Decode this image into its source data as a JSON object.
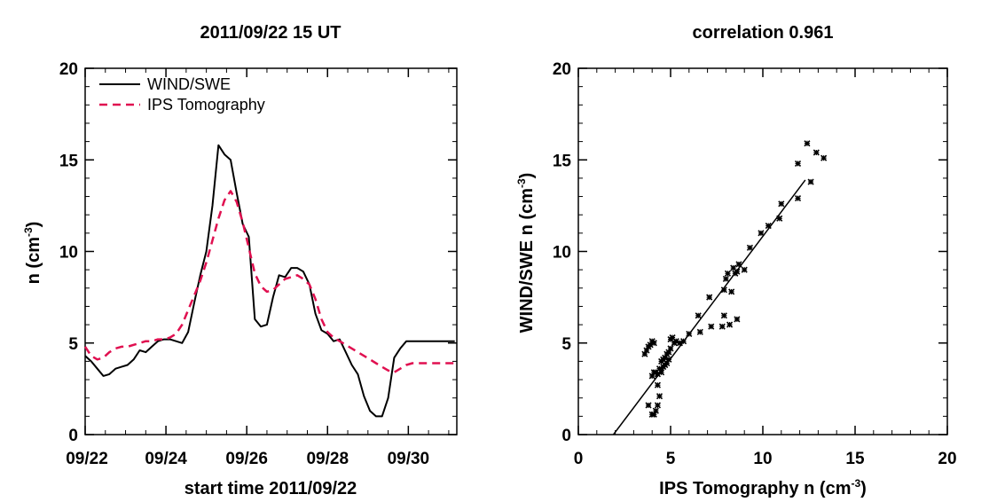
{
  "chart_data": [
    {
      "type": "line",
      "title": "2011/09/22 15 UT",
      "xlabel": "start time 2011/09/22",
      "ylabel": "n (cm",
      "ylabel_sup": "-3",
      "ylabel_close": ")",
      "x_tick_labels": [
        "09/22",
        "09/24",
        "09/26",
        "09/28",
        "09/30"
      ],
      "x_tick_days": [
        0,
        2,
        4,
        6,
        8
      ],
      "xlim_days": [
        0,
        9.2
      ],
      "ylim": [
        0,
        20
      ],
      "y_ticks": [
        0,
        5,
        10,
        15,
        20
      ],
      "legend_position": "top-left",
      "series": [
        {
          "name": "WIND/SWE",
          "color": "#000000",
          "style": "solid",
          "x": [
            0.0,
            0.15,
            0.3,
            0.45,
            0.6,
            0.75,
            0.9,
            1.05,
            1.2,
            1.35,
            1.5,
            1.65,
            1.8,
            1.95,
            2.1,
            2.25,
            2.4,
            2.55,
            2.7,
            2.85,
            3.0,
            3.15,
            3.3,
            3.45,
            3.6,
            3.75,
            3.9,
            4.05,
            4.2,
            4.35,
            4.5,
            4.65,
            4.8,
            4.95,
            5.1,
            5.25,
            5.4,
            5.55,
            5.7,
            5.85,
            6.0,
            6.15,
            6.3,
            6.45,
            6.6,
            6.75,
            6.9,
            7.05,
            7.2,
            7.35,
            7.5,
            7.65,
            7.8,
            7.95,
            8.1,
            8.25,
            8.4,
            8.55,
            8.7,
            8.85,
            9.0,
            9.15
          ],
          "y": [
            4.3,
            4.0,
            3.6,
            3.2,
            3.3,
            3.6,
            3.7,
            3.8,
            4.1,
            4.6,
            4.5,
            4.8,
            5.1,
            5.2,
            5.2,
            5.1,
            5.0,
            5.6,
            7.2,
            8.7,
            10.0,
            12.5,
            15.8,
            15.3,
            15.0,
            13.2,
            11.5,
            10.8,
            6.3,
            5.9,
            6.0,
            7.5,
            8.7,
            8.6,
            9.1,
            9.1,
            8.9,
            8.2,
            6.6,
            5.7,
            5.5,
            5.1,
            5.2,
            4.5,
            3.8,
            3.3,
            2.1,
            1.3,
            1.0,
            1.0,
            2.0,
            4.2,
            4.7,
            5.1,
            5.1,
            5.1,
            5.1,
            5.1,
            5.1,
            5.1,
            5.1,
            5.1
          ]
        },
        {
          "name": "IPS Tomography",
          "color": "#e01050",
          "style": "dashed",
          "x": [
            0.0,
            0.15,
            0.3,
            0.45,
            0.6,
            0.75,
            0.9,
            1.05,
            1.2,
            1.35,
            1.5,
            1.65,
            1.8,
            1.95,
            2.1,
            2.25,
            2.4,
            2.55,
            2.7,
            2.85,
            3.0,
            3.15,
            3.3,
            3.45,
            3.6,
            3.75,
            3.9,
            4.05,
            4.2,
            4.35,
            4.5,
            4.65,
            4.8,
            4.95,
            5.1,
            5.25,
            5.4,
            5.55,
            5.7,
            5.85,
            6.0,
            6.15,
            6.3,
            6.45,
            6.6,
            6.75,
            6.9,
            7.05,
            7.2,
            7.35,
            7.5,
            7.65,
            7.8,
            7.95,
            8.1,
            8.25,
            8.4,
            8.55,
            8.7,
            8.85,
            9.0,
            9.15
          ],
          "y": [
            4.8,
            4.3,
            4.1,
            4.2,
            4.5,
            4.7,
            4.8,
            4.8,
            4.9,
            5.0,
            5.1,
            5.1,
            5.2,
            5.2,
            5.3,
            5.5,
            6.0,
            6.8,
            7.6,
            8.4,
            9.4,
            10.6,
            11.8,
            12.8,
            13.3,
            12.7,
            11.6,
            10.2,
            8.8,
            8.1,
            7.8,
            7.9,
            8.2,
            8.5,
            8.6,
            8.7,
            8.5,
            8.2,
            7.4,
            6.3,
            5.6,
            5.3,
            5.1,
            4.9,
            4.7,
            4.5,
            4.3,
            4.1,
            3.9,
            3.7,
            3.5,
            3.4,
            3.6,
            3.8,
            3.9,
            3.9,
            3.9,
            3.9,
            3.9,
            3.9,
            3.9,
            3.9
          ]
        }
      ]
    },
    {
      "type": "scatter",
      "title": "correlation 0.961",
      "xlabel": "IPS Tomography n (cm",
      "xlabel_sup": "-3",
      "xlabel_close": ")",
      "ylabel": "WIND/SWE n (cm",
      "ylabel_sup": "-3",
      "ylabel_close": ")",
      "xlim": [
        0,
        20
      ],
      "ylim": [
        0,
        20
      ],
      "x_ticks": [
        0,
        5,
        10,
        15,
        20
      ],
      "y_ticks": [
        0,
        5,
        10,
        15,
        20
      ],
      "fit_line": {
        "x": [
          1.9,
          12.3
        ],
        "y": [
          0.0,
          13.9
        ]
      },
      "points": [
        [
          3.6,
          4.4
        ],
        [
          3.7,
          4.6
        ],
        [
          3.8,
          4.8
        ],
        [
          3.9,
          4.9
        ],
        [
          4.0,
          5.1
        ],
        [
          4.1,
          5.0
        ],
        [
          3.8,
          1.6
        ],
        [
          4.0,
          1.1
        ],
        [
          4.1,
          1.1
        ],
        [
          4.2,
          1.3
        ],
        [
          4.3,
          1.6
        ],
        [
          4.4,
          2.1
        ],
        [
          4.3,
          2.7
        ],
        [
          4.0,
          3.2
        ],
        [
          4.1,
          3.4
        ],
        [
          4.2,
          3.4
        ],
        [
          4.3,
          3.3
        ],
        [
          4.4,
          3.6
        ],
        [
          4.5,
          3.4
        ],
        [
          4.6,
          3.7
        ],
        [
          4.5,
          4.0
        ],
        [
          4.6,
          4.1
        ],
        [
          4.7,
          4.2
        ],
        [
          4.8,
          4.4
        ],
        [
          4.7,
          3.8
        ],
        [
          4.8,
          3.9
        ],
        [
          4.9,
          4.1
        ],
        [
          4.9,
          4.5
        ],
        [
          5.0,
          4.7
        ],
        [
          5.0,
          5.2
        ],
        [
          5.1,
          5.3
        ],
        [
          5.2,
          5.0
        ],
        [
          5.3,
          5.1
        ],
        [
          5.5,
          5.0
        ],
        [
          5.7,
          5.1
        ],
        [
          6.0,
          5.5
        ],
        [
          6.5,
          6.5
        ],
        [
          6.6,
          5.6
        ],
        [
          7.2,
          5.9
        ],
        [
          7.1,
          7.5
        ],
        [
          7.8,
          5.9
        ],
        [
          7.9,
          6.5
        ],
        [
          7.9,
          7.9
        ],
        [
          8.0,
          8.5
        ],
        [
          8.1,
          8.8
        ],
        [
          8.2,
          6.0
        ],
        [
          8.3,
          7.8
        ],
        [
          8.4,
          9.1
        ],
        [
          8.5,
          8.8
        ],
        [
          8.6,
          8.9
        ],
        [
          8.7,
          9.3
        ],
        [
          8.6,
          6.3
        ],
        [
          9.0,
          9.0
        ],
        [
          9.3,
          10.2
        ],
        [
          9.9,
          11.0
        ],
        [
          10.3,
          11.4
        ],
        [
          10.9,
          11.8
        ],
        [
          11.0,
          12.6
        ],
        [
          11.9,
          12.9
        ],
        [
          11.9,
          14.8
        ],
        [
          12.4,
          15.9
        ],
        [
          12.6,
          13.8
        ],
        [
          12.9,
          15.4
        ],
        [
          13.3,
          15.1
        ]
      ]
    }
  ]
}
